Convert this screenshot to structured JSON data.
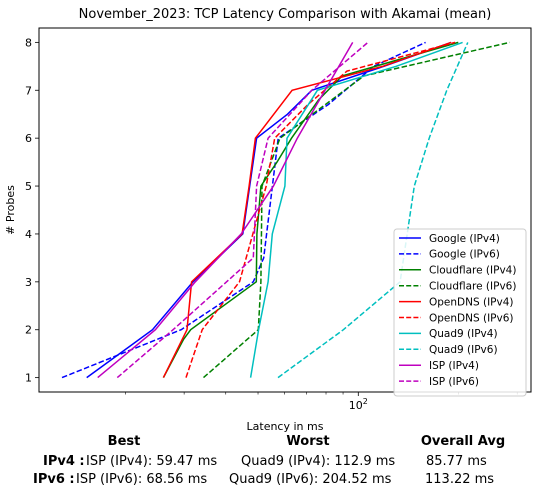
{
  "chart_data": {
    "type": "line",
    "title": "November_2023: TCP Latency Comparison with Akamai (mean)",
    "xlabel": "Latency in ms",
    "ylabel": "# Probes",
    "xscale": "log",
    "xlim": [
      11,
      330
    ],
    "ylim": [
      0.7,
      8.3
    ],
    "x_ticks": [
      {
        "value": 100,
        "label": "10^2"
      }
    ],
    "y_ticks": [
      1,
      2,
      3,
      4,
      5,
      6,
      7,
      8
    ],
    "grid": false,
    "legend_position": "lower-right",
    "series": [
      {
        "name": "Google (IPv4)",
        "color": "#0000ff",
        "dash": "solid",
        "points": [
          [
            15.3,
            1
          ],
          [
            24.1,
            2
          ],
          [
            31.9,
            3
          ],
          [
            33.0,
            3.1
          ],
          [
            45.0,
            4
          ],
          [
            49.5,
            6
          ],
          [
            61.3,
            6.5
          ],
          [
            72.5,
            7
          ],
          [
            119.4,
            7.5
          ],
          [
            190.0,
            8
          ]
        ]
      },
      {
        "name": "Google (IPv6)",
        "color": "#0000ff",
        "dash": "dashed",
        "points": [
          [
            12.9,
            1
          ],
          [
            29.4,
            2
          ],
          [
            48.4,
            3
          ],
          [
            52.0,
            3.5
          ],
          [
            57.5,
            6
          ],
          [
            81.2,
            6.7
          ],
          [
            111.3,
            7.5
          ],
          [
            159.3,
            8
          ]
        ]
      },
      {
        "name": "Cloudflare (IPv4)",
        "color": "#008000",
        "dash": "solid",
        "points": [
          [
            26.0,
            1
          ],
          [
            29.9,
            1.8
          ],
          [
            31.4,
            2
          ],
          [
            49.4,
            3
          ],
          [
            49.6,
            4
          ],
          [
            51.0,
            5
          ],
          [
            57.0,
            5.5
          ],
          [
            63.0,
            6
          ],
          [
            76.0,
            6.8
          ],
          [
            89.5,
            7.3
          ],
          [
            199.6,
            8
          ]
        ]
      },
      {
        "name": "Cloudflare (IPv6)",
        "color": "#008000",
        "dash": "dashed",
        "points": [
          [
            34.3,
            1
          ],
          [
            50.1,
            2
          ],
          [
            51.0,
            3
          ],
          [
            51.4,
            5
          ],
          [
            58.2,
            6
          ],
          [
            104.0,
            7.3
          ],
          [
            284.6,
            8
          ]
        ]
      },
      {
        "name": "OpenDNS (IPv4)",
        "color": "#ff0000",
        "dash": "solid",
        "points": [
          [
            26.0,
            1
          ],
          [
            30.6,
            2
          ],
          [
            31.6,
            3
          ],
          [
            44.8,
            4
          ],
          [
            47.0,
            5
          ],
          [
            49.1,
            6
          ],
          [
            63.3,
            7
          ],
          [
            118.5,
            7.5
          ],
          [
            190.0,
            8
          ]
        ]
      },
      {
        "name": "OpenDNS (IPv6)",
        "color": "#ff0000",
        "dash": "dashed",
        "points": [
          [
            30.4,
            1
          ],
          [
            34.0,
            2
          ],
          [
            44.0,
            3
          ],
          [
            52.9,
            5
          ],
          [
            56.1,
            6
          ],
          [
            61.9,
            6.3
          ],
          [
            70.6,
            6.7
          ],
          [
            92.5,
            7.4
          ],
          [
            195.3,
            8
          ]
        ]
      },
      {
        "name": "Quad9 (IPv4)",
        "color": "#00bfbf",
        "dash": "solid",
        "points": [
          [
            47.5,
            1
          ],
          [
            50.2,
            2
          ],
          [
            53.6,
            3
          ],
          [
            55.2,
            4
          ],
          [
            60.2,
            5
          ],
          [
            61.1,
            6
          ],
          [
            75.4,
            7
          ],
          [
            130.0,
            7.5
          ],
          [
            205.6,
            8
          ]
        ]
      },
      {
        "name": "Quad9 (IPv6)",
        "color": "#00bfbf",
        "dash": "dashed",
        "points": [
          [
            57.4,
            1
          ],
          [
            90.2,
            2
          ],
          [
            133.5,
            3
          ],
          [
            147.3,
            5
          ],
          [
            163.3,
            6
          ],
          [
            184.4,
            7
          ],
          [
            213.2,
            8
          ]
        ]
      },
      {
        "name": "ISP (IPv4)",
        "color": "#bf00bf",
        "dash": "solid",
        "points": [
          [
            16.5,
            1
          ],
          [
            24.6,
            2
          ],
          [
            32.4,
            3
          ],
          [
            44.5,
            4
          ],
          [
            55.6,
            5
          ],
          [
            65.6,
            6
          ],
          [
            96.2,
            8
          ]
        ]
      },
      {
        "name": "ISP (IPv6)",
        "color": "#bf00bf",
        "dash": "dashed",
        "points": [
          [
            18.9,
            1
          ],
          [
            27.8,
            2
          ],
          [
            48.4,
            3.5
          ],
          [
            49.5,
            5
          ],
          [
            53.6,
            6
          ],
          [
            72.5,
            7
          ],
          [
            106.9,
            8
          ]
        ]
      }
    ]
  },
  "summary": {
    "headers": {
      "best": "Best",
      "worst": "Worst",
      "avg": "Overall Avg"
    },
    "rows": [
      {
        "label": "IPv4 :",
        "best": "ISP (IPv4): 59.47 ms",
        "worst": "Quad9 (IPv4): 112.9 ms",
        "avg": "85.77 ms"
      },
      {
        "label": "IPv6 :",
        "best": "ISP (IPv6): 68.56 ms",
        "worst": "Quad9 (IPv6): 204.52 ms",
        "avg": "113.22 ms"
      }
    ]
  }
}
